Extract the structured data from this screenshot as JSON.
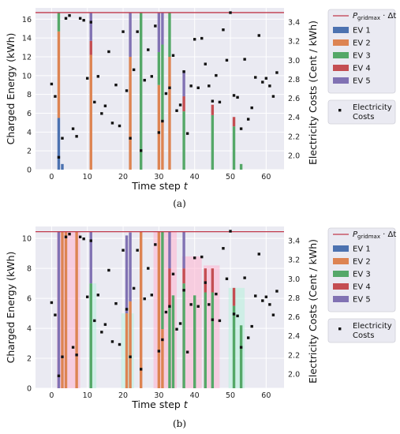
{
  "chart_data": [
    {
      "panel": "(a)",
      "type": "bar",
      "stacked": true,
      "caption": "(a)",
      "xlabel": "Time step t",
      "ylabel": "Charged Energy (kWh)",
      "ylabel_right": "Electricity Costs (Cent / kWh)",
      "xlim": [
        -4.5,
        65
      ],
      "ylim": [
        0,
        17.2
      ],
      "ylim_right": [
        1.85,
        3.55
      ],
      "xticks": [
        0,
        10,
        20,
        30,
        40,
        50,
        60
      ],
      "yticks": [
        0,
        2,
        4,
        6,
        8,
        10,
        12,
        14,
        16
      ],
      "yticks_right": [
        2.0,
        2.2,
        2.4,
        2.6,
        2.8,
        3.0,
        3.2,
        3.4
      ],
      "grid": true,
      "limit_line": {
        "label": "P_gridmax · Δt",
        "value": 16.7,
        "color": "#c0394b"
      },
      "series_colors": {
        "EV 1": "#4c72b0",
        "EV 2": "#dd8452",
        "EV 3": "#55a868",
        "EV 4": "#c44e52",
        "EV 5": "#8172b3"
      },
      "bars": [
        {
          "x": 2,
          "stack": {
            "EV 1": 5.5,
            "EV 2": 9.2,
            "EV 3": 2.0
          }
        },
        {
          "x": 3,
          "stack": {
            "EV 1": 0.6
          }
        },
        {
          "x": 11,
          "stack": {
            "EV 2": 12.2,
            "EV 4": 1.5,
            "EV 5": 3.0
          }
        },
        {
          "x": 22,
          "stack": {
            "EV 2": 12.0,
            "EV 5": 4.7
          }
        },
        {
          "x": 25,
          "stack": {
            "EV 3": 16.7
          }
        },
        {
          "x": 30,
          "stack": {
            "EV 2": 9.0,
            "EV 3": 3.5,
            "EV 5": 4.2
          }
        },
        {
          "x": 31,
          "stack": {
            "EV 2": 5.3,
            "EV 3": 8.0,
            "EV 5": 3.4
          }
        },
        {
          "x": 33,
          "stack": {
            "EV 2": 12.0,
            "EV 3": 4.7
          }
        },
        {
          "x": 37,
          "stack": {
            "EV 3": 6.2,
            "EV 4": 1.6,
            "EV 5": 2.7
          }
        },
        {
          "x": 45,
          "stack": {
            "EV 3": 5.8,
            "EV 4": 1.1
          }
        },
        {
          "x": 51,
          "stack": {
            "EV 3": 4.6,
            "EV 4": 1.0
          }
        },
        {
          "x": 53,
          "stack": {
            "EV 3": 0.6
          }
        }
      ],
      "costs": {
        "name": "Electricity Costs",
        "x": [
          0,
          1,
          2,
          3,
          4,
          5,
          6,
          7,
          8,
          9,
          10,
          11,
          12,
          13,
          14,
          15,
          16,
          17,
          18,
          19,
          20,
          21,
          22,
          23,
          24,
          25,
          26,
          27,
          28,
          29,
          30,
          31,
          32,
          33,
          34,
          35,
          36,
          37,
          38,
          39,
          40,
          41,
          42,
          43,
          44,
          45,
          46,
          47,
          48,
          49,
          50,
          51,
          52,
          53,
          54,
          55,
          56,
          57,
          58,
          59,
          60,
          61,
          62,
          63
        ],
        "y": [
          2.75,
          2.62,
          1.98,
          2.18,
          3.44,
          3.47,
          2.28,
          2.2,
          3.44,
          3.42,
          2.81,
          3.4,
          2.56,
          2.83,
          2.44,
          2.52,
          3.09,
          2.34,
          2.74,
          2.31,
          3.3,
          2.68,
          2.18,
          2.9,
          3.3,
          2.05,
          2.79,
          3.11,
          2.83,
          3.36,
          2.24,
          2.36,
          2.65,
          2.71,
          3.05,
          2.47,
          2.53,
          2.88,
          2.23,
          2.73,
          3.22,
          2.71,
          3.23,
          2.96,
          2.73,
          2.57,
          2.84,
          2.56,
          3.32,
          3.0,
          3.5,
          2.63,
          2.61,
          2.28,
          3.01,
          2.38,
          2.5,
          2.82,
          3.26,
          2.77,
          2.81,
          2.73,
          2.62,
          2.87
        ]
      }
    },
    {
      "panel": "(b)",
      "type": "bar",
      "stacked": true,
      "caption": "(b)",
      "xlabel": "Time step t",
      "ylabel": "Charged Energy (kWh)",
      "ylabel_right": "Electricity Costs (Cent / kWh)",
      "xlim": [
        -4.5,
        65
      ],
      "ylim": [
        0,
        10.8
      ],
      "ylim_right": [
        1.85,
        3.55
      ],
      "xticks": [
        0,
        10,
        20,
        30,
        40,
        50,
        60
      ],
      "yticks": [
        0,
        2,
        4,
        6,
        8,
        10
      ],
      "yticks_right": [
        2.0,
        2.2,
        2.4,
        2.6,
        2.8,
        3.0,
        3.2,
        3.4
      ],
      "grid": true,
      "limit_line": {
        "label": "P_gridmax · Δt",
        "value": 10.45,
        "color": "#c0394b"
      },
      "series_colors": {
        "EV 1": "#4c72b0",
        "EV 2": "#dd8452",
        "EV 3": "#55a868",
        "EV 4": "#c44e52",
        "EV 5": "#8172b3"
      },
      "bars": [
        {
          "x": 2,
          "stack": {
            "EV 5": 10.45
          }
        },
        {
          "x": 3,
          "stack": {
            "EV 2": 10.45
          }
        },
        {
          "x": 4,
          "stack": {
            "EV 2": 10.45
          }
        },
        {
          "x": 7,
          "stack": {
            "EV 2": 10.45
          }
        },
        {
          "x": 11,
          "stack": {
            "EV 3": 7.0,
            "EV 5": 3.45
          }
        },
        {
          "x": 21,
          "stack": {
            "EV 2": 5.0,
            "EV 5": 5.2
          }
        },
        {
          "x": 22,
          "stack": {
            "EV 2": 5.8,
            "EV 5": 4.6
          }
        },
        {
          "x": 25,
          "stack": {
            "EV 2": 10.45
          }
        },
        {
          "x": 30,
          "stack": {
            "EV 2": 10.45
          }
        },
        {
          "x": 31,
          "stack": {
            "EV 3": 6.5,
            "EV 2": 3.95
          }
        },
        {
          "x": 33,
          "stack": {
            "EV 3": 5.5,
            "EV 4": 2.5,
            "EV 5": 2.45
          }
        },
        {
          "x": 34,
          "stack": {
            "EV 3": 6.2
          }
        },
        {
          "x": 37,
          "stack": {
            "EV 3": 7.0,
            "EV 4": 1.0,
            "EV 5": 2.45
          }
        },
        {
          "x": 40,
          "stack": {
            "EV 3": 6.2
          }
        },
        {
          "x": 43,
          "stack": {
            "EV 3": 6.4,
            "EV 4": 1.6
          }
        },
        {
          "x": 45,
          "stack": {
            "EV 3": 6.4,
            "EV 4": 1.6
          }
        },
        {
          "x": 51,
          "stack": {
            "EV 3": 5.5,
            "EV 4": 1.2
          }
        },
        {
          "x": 53,
          "stack": {
            "EV 3": 4.2
          }
        }
      ],
      "shaded_regions": [
        {
          "x0": 1.5,
          "x1": 8,
          "top": 10.45,
          "color": "#ffb3d0"
        },
        {
          "x0": 10.5,
          "x1": 12.5,
          "top": 7.0,
          "color": "#b6f0dc"
        },
        {
          "x0": 19.5,
          "x1": 23,
          "top": 5.0,
          "color": "#b6f0dc"
        },
        {
          "x0": 28.5,
          "x1": 35,
          "top": 10.45,
          "color": "#ffb3d0"
        },
        {
          "x0": 36.5,
          "x1": 42,
          "top": 8.8,
          "color": "#ffb3d0"
        },
        {
          "x0": 42.5,
          "x1": 47,
          "top": 8.2,
          "color": "#ffb3d0"
        },
        {
          "x0": 49.5,
          "x1": 54,
          "top": 6.7,
          "color": "#b6f0dc"
        }
      ],
      "costs": {
        "name": "Electricity Costs",
        "x": [
          0,
          1,
          2,
          3,
          4,
          5,
          6,
          7,
          8,
          9,
          10,
          11,
          12,
          13,
          14,
          15,
          16,
          17,
          18,
          19,
          20,
          21,
          22,
          23,
          24,
          25,
          26,
          27,
          28,
          29,
          30,
          31,
          32,
          33,
          34,
          35,
          36,
          37,
          38,
          39,
          40,
          41,
          42,
          43,
          44,
          45,
          46,
          47,
          48,
          49,
          50,
          51,
          52,
          53,
          54,
          55,
          56,
          57,
          58,
          59,
          60,
          61,
          62,
          63
        ],
        "y": [
          2.75,
          2.62,
          1.98,
          2.18,
          3.44,
          3.47,
          2.28,
          2.2,
          3.44,
          3.42,
          2.81,
          3.4,
          2.56,
          2.83,
          2.44,
          2.52,
          3.09,
          2.34,
          2.74,
          2.31,
          3.3,
          2.68,
          2.18,
          2.9,
          3.3,
          2.05,
          2.79,
          3.11,
          2.83,
          3.36,
          2.24,
          2.36,
          2.65,
          2.71,
          3.05,
          2.47,
          2.53,
          2.88,
          2.23,
          2.73,
          3.22,
          2.71,
          3.23,
          2.96,
          2.73,
          2.57,
          2.84,
          2.56,
          3.32,
          3.0,
          3.5,
          2.63,
          2.61,
          2.28,
          3.01,
          2.38,
          2.5,
          2.82,
          3.26,
          2.77,
          2.81,
          2.73,
          2.62,
          2.87
        ]
      }
    }
  ],
  "legend": {
    "limit_label_main": "P",
    "limit_label_sub": "gridmax",
    "limit_label_rest": " · Δt",
    "ev_labels": [
      "EV 1",
      "EV 2",
      "EV 3",
      "EV 4",
      "EV 5"
    ],
    "ev_colors": [
      "#4c72b0",
      "#dd8452",
      "#55a868",
      "#c44e52",
      "#8172b3"
    ],
    "costs_label_line1": "Electricity",
    "costs_label_line2": "Costs"
  },
  "axis_text": {
    "xlabel_prefix": "Time step ",
    "xlabel_var": "t",
    "ylabel": "Charged Energy (kWh)",
    "ylabel_right": "Electricity Costs (Cent / kWh)"
  },
  "colors": {
    "plot_bg": "#eaeaf2",
    "grid": "#ffffff",
    "limit": "#c0394b",
    "marker": "#111111"
  }
}
